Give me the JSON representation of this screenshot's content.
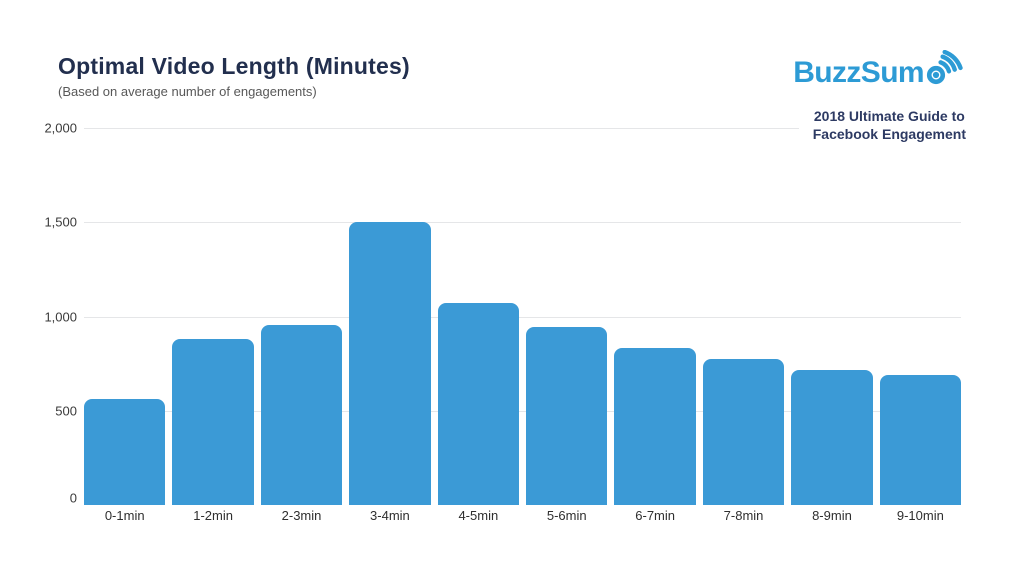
{
  "header": {
    "title": "Optimal Video Length (Minutes)",
    "subtitle": "(Based on average number of engagements)"
  },
  "branding": {
    "logo_text_prefix": "BuzzSum",
    "logo_full_name": "BuzzSumo",
    "logo_color": "#2d9bd5",
    "tagline_line1": "2018 Ultimate Guide to",
    "tagline_line2": "Facebook Engagement",
    "tagline_color": "#2d3a63"
  },
  "chart_data": {
    "type": "bar",
    "title": "Optimal Video Length (Minutes)",
    "subtitle": "(Based on average number of engagements)",
    "categories": [
      "0-1min",
      "1-2min",
      "2-3min",
      "3-4min",
      "4-5min",
      "5-6min",
      "6-7min",
      "7-8min",
      "8-9min",
      "9-10min"
    ],
    "values": [
      565,
      880,
      955,
      1500,
      1070,
      945,
      835,
      775,
      715,
      690
    ],
    "xlabel": "",
    "ylabel": "",
    "ylim": [
      0,
      2000
    ],
    "yticks": [
      0,
      500,
      1000,
      1500,
      2000
    ],
    "grid": true,
    "legend": false,
    "bar_color": "#3b9ad6",
    "gridline_color": "#e5e6e8"
  }
}
